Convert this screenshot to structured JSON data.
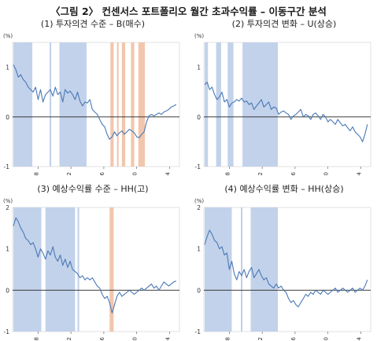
{
  "figure_title": "〈그림 2〉 컨센서스 포트폴리오 월간 초과수익률 – 이동구간 분석",
  "colors": {
    "line": "#4a78b5",
    "shade_up": "#c2d2ea",
    "shade_down": "#f2c6ad",
    "zero": "#222222"
  },
  "chart_data": [
    {
      "type": "line",
      "title": "(1) 투자의견 수준 – B(매수)",
      "ylabel": "(%)",
      "ylim": [
        -1,
        1.5
      ],
      "yticks": [
        -1,
        0,
        1
      ],
      "xlim": [
        2004.9,
        2025.2
      ],
      "xticks": [
        2008,
        2012,
        2016,
        2020,
        2024
      ],
      "xtick_labels": [
        "'08",
        "'12",
        "'16",
        "'20",
        "'24"
      ],
      "shaded_up": [
        [
          2005.0,
          2007.3
        ],
        [
          2009.4,
          2009.6
        ],
        [
          2010.6,
          2013.9
        ]
      ],
      "shaded_down": [
        [
          2016.8,
          2017.2
        ],
        [
          2017.6,
          2017.8
        ],
        [
          2018.2,
          2018.6
        ],
        [
          2019.3,
          2019.7
        ],
        [
          2020.2,
          2021.0
        ]
      ],
      "series": [
        {
          "x": [
            2005.0,
            2005.3,
            2005.6,
            2005.9,
            2006.2,
            2006.5,
            2006.8,
            2007.1,
            2007.4,
            2007.7,
            2008.0,
            2008.3,
            2008.6,
            2008.9,
            2009.2,
            2009.5,
            2009.8,
            2010.1,
            2010.4,
            2010.7,
            2011.0,
            2011.3,
            2011.6,
            2011.9,
            2012.2,
            2012.5,
            2012.8,
            2013.1,
            2013.4,
            2013.7,
            2014.0,
            2014.3,
            2014.6,
            2014.9,
            2015.2,
            2015.5,
            2015.8,
            2016.1,
            2016.4,
            2016.7,
            2017.0,
            2017.3,
            2017.6,
            2017.9,
            2018.2,
            2018.5,
            2018.8,
            2019.1,
            2019.4,
            2019.7,
            2020.0,
            2020.3,
            2020.6,
            2020.9,
            2021.2,
            2021.5,
            2021.8,
            2022.1,
            2022.4,
            2022.7,
            2023.0,
            2023.3,
            2023.6,
            2023.9,
            2024.2,
            2024.5,
            2024.8
          ],
          "values": [
            1.05,
            0.95,
            0.8,
            0.85,
            0.75,
            0.7,
            0.6,
            0.55,
            0.5,
            0.6,
            0.35,
            0.55,
            0.3,
            0.45,
            0.5,
            0.55,
            0.42,
            0.6,
            0.45,
            0.5,
            0.3,
            0.55,
            0.48,
            0.52,
            0.45,
            0.35,
            0.5,
            0.32,
            0.22,
            0.3,
            0.28,
            0.35,
            0.15,
            0.1,
            0.05,
            -0.05,
            -0.15,
            -0.2,
            -0.35,
            -0.45,
            -0.4,
            -0.3,
            -0.38,
            -0.32,
            -0.28,
            -0.35,
            -0.3,
            -0.25,
            -0.28,
            -0.32,
            -0.4,
            -0.42,
            -0.35,
            -0.3,
            -0.1,
            0.02,
            0.05,
            0.02,
            0.05,
            0.08,
            0.05,
            0.1,
            0.12,
            0.15,
            0.2,
            0.22,
            0.25
          ]
        }
      ]
    },
    {
      "type": "line",
      "title": "(2) 투자의견 변화 – U(상승)",
      "ylabel": "(%)",
      "ylim": [
        -1,
        1.5
      ],
      "yticks": [
        -1,
        0,
        1
      ],
      "xlim": [
        2004.9,
        2025.2
      ],
      "xticks": [
        2008,
        2012,
        2016,
        2020,
        2024
      ],
      "xtick_labels": [
        "'08",
        "'12",
        "'16",
        "'20",
        "'24"
      ],
      "shaded_up": [
        [
          2005.0,
          2005.4
        ],
        [
          2006.4,
          2007.0
        ],
        [
          2007.8,
          2008.5
        ],
        [
          2009.6,
          2013.9
        ]
      ],
      "shaded_down": [],
      "series": [
        {
          "x": [
            2005.0,
            2005.3,
            2005.6,
            2005.9,
            2006.2,
            2006.5,
            2006.8,
            2007.1,
            2007.4,
            2007.7,
            2008.0,
            2008.3,
            2008.6,
            2008.9,
            2009.2,
            2009.5,
            2009.8,
            2010.1,
            2010.4,
            2010.7,
            2011.0,
            2011.3,
            2011.6,
            2011.9,
            2012.2,
            2012.5,
            2012.8,
            2013.1,
            2013.4,
            2013.7,
            2014.0,
            2014.3,
            2014.6,
            2014.9,
            2015.2,
            2015.5,
            2015.8,
            2016.1,
            2016.4,
            2016.7,
            2017.0,
            2017.3,
            2017.6,
            2017.9,
            2018.2,
            2018.5,
            2018.8,
            2019.1,
            2019.4,
            2019.7,
            2020.0,
            2020.3,
            2020.6,
            2020.9,
            2021.2,
            2021.5,
            2021.8,
            2022.1,
            2022.4,
            2022.7,
            2023.0,
            2023.3,
            2023.6,
            2023.9,
            2024.2,
            2024.5,
            2024.8
          ],
          "values": [
            0.65,
            0.7,
            0.55,
            0.6,
            0.45,
            0.35,
            0.4,
            0.5,
            0.3,
            0.35,
            0.2,
            0.28,
            0.3,
            0.35,
            0.32,
            0.38,
            0.3,
            0.32,
            0.25,
            0.28,
            0.15,
            0.22,
            0.28,
            0.35,
            0.2,
            0.25,
            0.3,
            0.15,
            0.2,
            0.18,
            0.05,
            0.1,
            0.12,
            0.08,
            0.05,
            -0.05,
            0.02,
            0.05,
            0.1,
            0.15,
            0.0,
            0.05,
            0.02,
            -0.05,
            0.05,
            0.08,
            0.02,
            -0.05,
            0.05,
            0.0,
            -0.1,
            -0.05,
            -0.1,
            -0.15,
            -0.05,
            -0.12,
            -0.18,
            -0.15,
            -0.22,
            -0.28,
            -0.2,
            -0.3,
            -0.35,
            -0.4,
            -0.5,
            -0.35,
            -0.15
          ]
        }
      ]
    },
    {
      "type": "line",
      "title": "(3) 예상수익률 수준 – HH(고)",
      "ylabel": "(%)",
      "ylim": [
        -1,
        2
      ],
      "yticks": [
        -1,
        0,
        1,
        2
      ],
      "xlim": [
        2004.9,
        2025.2
      ],
      "xticks": [
        2008,
        2012,
        2016,
        2020,
        2024
      ],
      "xtick_labels": [
        "'08",
        "'12",
        "'16",
        "'20",
        "'24"
      ],
      "shaded_up": [
        [
          2005.0,
          2008.4
        ],
        [
          2008.9,
          2012.5
        ],
        [
          2012.8,
          2013.0
        ]
      ],
      "shaded_down": [
        [
          2016.7,
          2017.2
        ]
      ],
      "series": [
        {
          "x": [
            2005.0,
            2005.3,
            2005.6,
            2005.9,
            2006.2,
            2006.5,
            2006.8,
            2007.1,
            2007.4,
            2007.7,
            2008.0,
            2008.3,
            2008.6,
            2008.9,
            2009.2,
            2009.5,
            2009.8,
            2010.1,
            2010.4,
            2010.7,
            2011.0,
            2011.3,
            2011.6,
            2011.9,
            2012.2,
            2012.5,
            2012.8,
            2013.1,
            2013.4,
            2013.7,
            2014.0,
            2014.3,
            2014.6,
            2014.9,
            2015.2,
            2015.5,
            2015.8,
            2016.1,
            2016.4,
            2016.7,
            2017.0,
            2017.3,
            2017.6,
            2017.9,
            2018.2,
            2018.5,
            2018.8,
            2019.1,
            2019.4,
            2019.7,
            2020.0,
            2020.3,
            2020.6,
            2020.9,
            2021.2,
            2021.5,
            2021.8,
            2022.1,
            2022.4,
            2022.7,
            2023.0,
            2023.3,
            2023.6,
            2023.9,
            2024.2,
            2024.5,
            2024.8
          ],
          "values": [
            1.55,
            1.75,
            1.65,
            1.5,
            1.4,
            1.25,
            1.2,
            1.1,
            1.15,
            1.0,
            0.8,
            1.0,
            0.9,
            0.75,
            0.95,
            0.85,
            1.05,
            0.8,
            0.7,
            0.85,
            0.6,
            0.75,
            0.55,
            0.7,
            0.5,
            0.45,
            0.4,
            0.3,
            0.35,
            0.25,
            0.3,
            0.25,
            0.3,
            0.2,
            0.1,
            0.05,
            -0.1,
            -0.2,
            -0.15,
            -0.3,
            -0.55,
            -0.35,
            -0.15,
            -0.05,
            -0.15,
            -0.1,
            -0.05,
            0.0,
            -0.05,
            -0.1,
            -0.05,
            0.0,
            0.05,
            0.0,
            0.05,
            0.1,
            0.15,
            0.05,
            0.1,
            0.0,
            0.1,
            0.2,
            0.15,
            0.1,
            0.15,
            0.2,
            0.22
          ]
        }
      ]
    },
    {
      "type": "line",
      "title": "(4) 예상수익률 변화 – HH(상승)",
      "ylabel": "(%)",
      "ylim": [
        -1,
        2
      ],
      "yticks": [
        -1,
        0,
        1,
        2
      ],
      "xlim": [
        2004.9,
        2025.2
      ],
      "xticks": [
        2008,
        2012,
        2016,
        2020,
        2024
      ],
      "xtick_labels": [
        "'08",
        "'12",
        "'16",
        "'20",
        "'24"
      ],
      "shaded_up": [
        [
          2005.0,
          2008.3
        ],
        [
          2009.4,
          2009.6
        ],
        [
          2010.6,
          2013.9
        ]
      ],
      "shaded_down": [],
      "series": [
        {
          "x": [
            2005.0,
            2005.3,
            2005.6,
            2005.9,
            2006.2,
            2006.5,
            2006.8,
            2007.1,
            2007.4,
            2007.7,
            2008.0,
            2008.3,
            2008.6,
            2008.9,
            2009.2,
            2009.5,
            2009.8,
            2010.1,
            2010.4,
            2010.7,
            2011.0,
            2011.3,
            2011.6,
            2011.9,
            2012.2,
            2012.5,
            2012.8,
            2013.1,
            2013.4,
            2013.7,
            2014.0,
            2014.3,
            2014.6,
            2014.9,
            2015.2,
            2015.5,
            2015.8,
            2016.1,
            2016.4,
            2016.7,
            2017.0,
            2017.3,
            2017.6,
            2017.9,
            2018.2,
            2018.5,
            2018.8,
            2019.1,
            2019.4,
            2019.7,
            2020.0,
            2020.3,
            2020.6,
            2020.9,
            2021.2,
            2021.5,
            2021.8,
            2022.1,
            2022.4,
            2022.7,
            2023.0,
            2023.3,
            2023.6,
            2023.9,
            2024.2,
            2024.5,
            2024.8
          ],
          "values": [
            1.1,
            1.3,
            1.45,
            1.35,
            1.2,
            1.15,
            1.0,
            1.05,
            0.85,
            0.9,
            0.5,
            0.7,
            0.4,
            0.25,
            0.45,
            0.35,
            0.5,
            0.3,
            0.45,
            0.55,
            0.3,
            0.4,
            0.5,
            0.35,
            0.25,
            0.3,
            0.15,
            0.1,
            0.05,
            0.15,
            0.05,
            0.1,
            0.0,
            -0.05,
            -0.2,
            -0.3,
            -0.25,
            -0.35,
            -0.4,
            -0.3,
            -0.2,
            -0.1,
            -0.15,
            -0.05,
            -0.1,
            0.0,
            -0.05,
            -0.1,
            0.0,
            -0.05,
            -0.1,
            -0.05,
            0.0,
            0.05,
            -0.05,
            0.0,
            0.05,
            0.0,
            -0.05,
            0.0,
            0.05,
            -0.05,
            0.0,
            0.05,
            0.0,
            0.1,
            0.25
          ]
        }
      ]
    }
  ]
}
